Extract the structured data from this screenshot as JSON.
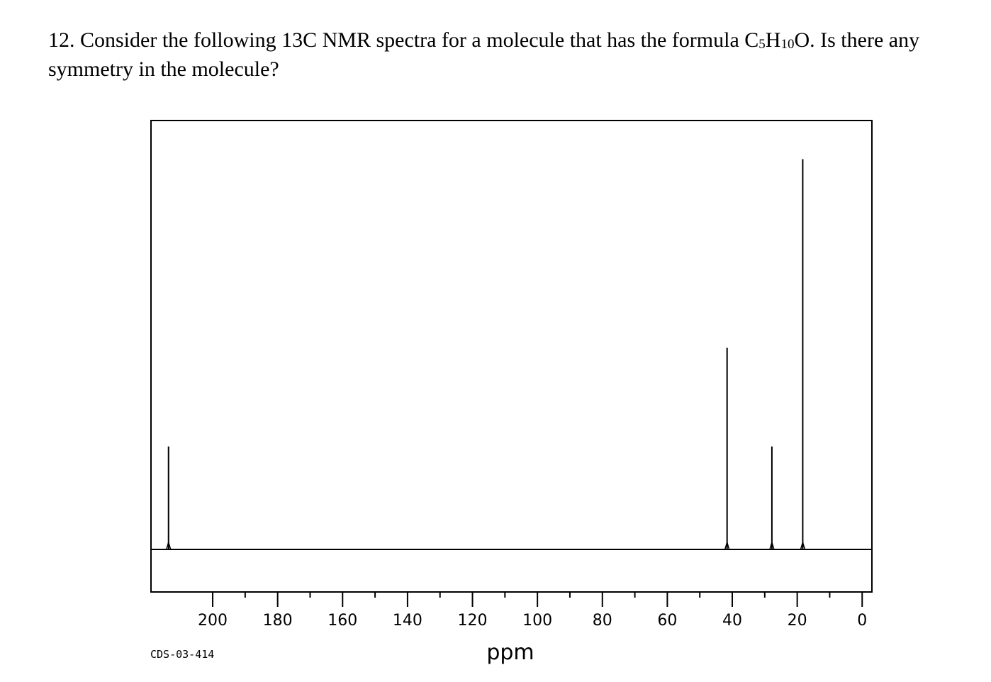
{
  "question": {
    "number": "12.",
    "text_before_formula": "Consider the following 13C NMR spectra for a molecule that has the formula ",
    "formula": {
      "c": "C",
      "c_sub": "5",
      "h": "H",
      "h_sub": "10",
      "o": "O"
    },
    "text_after_formula": ". Is there any symmetry in the molecule?"
  },
  "chart_data": {
    "type": "line",
    "title": "",
    "xlabel": "ppm",
    "ylabel": "",
    "xlim": [
      219,
      -3
    ],
    "x_reversed": true,
    "major_ticks": [
      200,
      180,
      160,
      140,
      120,
      100,
      80,
      60,
      40,
      20,
      0
    ],
    "tick_labels": [
      "200",
      "180",
      "160",
      "140",
      "120",
      "100",
      "80",
      "60",
      "40",
      "20",
      "0"
    ],
    "minor_ticks": [
      190,
      170,
      150,
      130,
      110,
      90,
      70,
      50,
      30,
      10
    ],
    "ylim": [
      0,
      1
    ],
    "grid": false,
    "legend": "none",
    "peaks": [
      {
        "ppm": 213.6,
        "intensity": 0.24
      },
      {
        "ppm": 41.6,
        "intensity": 0.47
      },
      {
        "ppm": 27.8,
        "intensity": 0.24
      },
      {
        "ppm": 18.3,
        "intensity": 0.91
      }
    ],
    "spectrum_code": "CDS-03-414",
    "line_color": "#000000"
  }
}
